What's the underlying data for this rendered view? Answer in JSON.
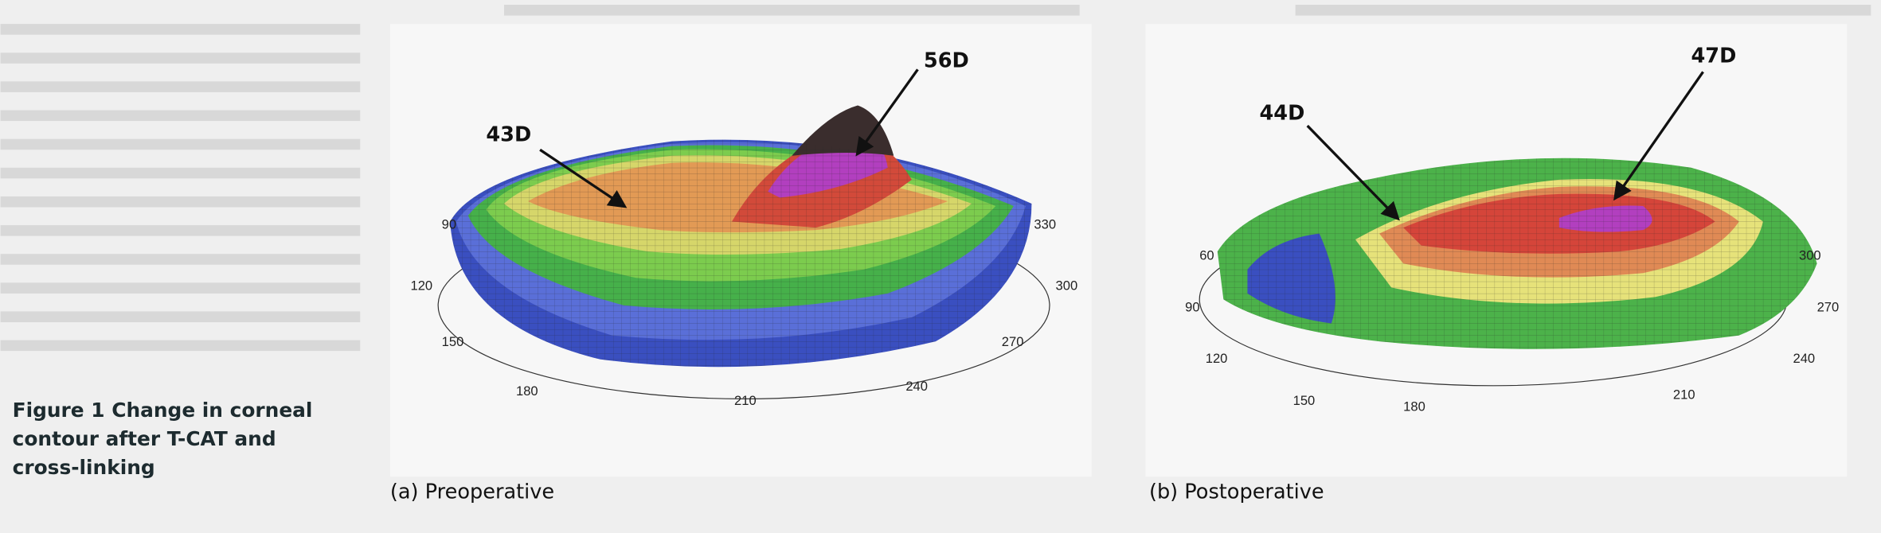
{
  "caption": {
    "label": "Figure 1",
    "lines": [
      "Change in corneal",
      "contour after T-CAT and",
      "cross-linking"
    ]
  },
  "panels": [
    {
      "label": "(a) Preoperative",
      "annotations": [
        "43D",
        "56D"
      ],
      "angles": [
        90,
        120,
        150,
        180,
        210,
        240,
        270,
        300,
        330
      ]
    },
    {
      "label": "(b) Postoperative",
      "annotations": [
        "44D",
        "47D"
      ],
      "angles": [
        60,
        90,
        120,
        150,
        180,
        210,
        240,
        270,
        300
      ]
    }
  ]
}
